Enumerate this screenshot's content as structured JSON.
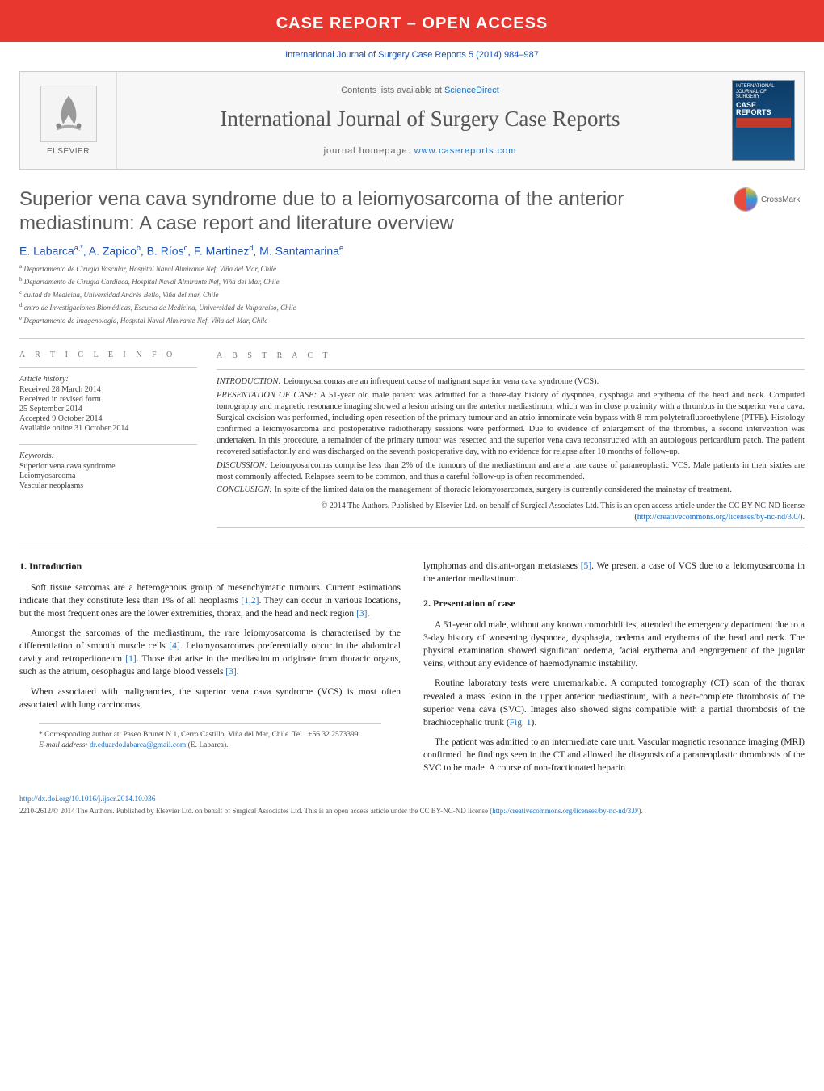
{
  "banner": {
    "text": "CASE REPORT – OPEN ACCESS"
  },
  "citation": "International Journal of Surgery Case Reports 5 (2014) 984–987",
  "header": {
    "elsevier_label": "ELSEVIER",
    "available": "Contents lists available at ",
    "available_link": "ScienceDirect",
    "journal_title": "International Journal of Surgery Case Reports",
    "homepage_label": "journal homepage: ",
    "homepage_url": "www.casereports.com",
    "cover": {
      "line1": "INTERNATIONAL JOURNAL OF SURGERY",
      "line2": "CASE REPORTS"
    }
  },
  "title": "Superior vena cava syndrome due to a leiomyosarcoma of the anterior mediastinum: A case report and literature overview",
  "crossmark_label": "CrossMark",
  "authors_html": "E. Labarca<sup>a,*</sup>, A. Zapico<sup>b</sup>, B. Ríos<sup>c</sup>, F. Martinez<sup>d</sup>, M. Santamarina<sup>e</sup>",
  "affiliations": [
    {
      "sup": "a",
      "text": "Departamento de Cirugía Vascular, Hospital Naval Almirante Nef, Viña del Mar, Chile"
    },
    {
      "sup": "b",
      "text": "Departamento de Cirugía Cardiaca, Hospital Naval Almirante Nef, Viña del Mar, Chile"
    },
    {
      "sup": "c",
      "text": "cultad de Medicina, Universidad Andrés Bello, Viña del mar, Chile"
    },
    {
      "sup": "d",
      "text": "entro de Investigaciones Biomédicas, Escuela de Medicina, Universidad de Valparaíso, Chile"
    },
    {
      "sup": "e",
      "text": "Departamento de Imagenología, Hospital Naval Almirante Nef, Viña del Mar, Chile"
    }
  ],
  "article_info": {
    "head": "A R T I C L E   I N F O",
    "history_label": "Article history:",
    "history": [
      "Received 28 March 2014",
      "Received in revised form",
      "25 September 2014",
      "Accepted 9 October 2014",
      "Available online 31 October 2014"
    ],
    "keywords_label": "Keywords:",
    "keywords": [
      "Superior vena cava syndrome",
      "Leiomyosarcoma",
      "Vascular neoplasms"
    ]
  },
  "abstract": {
    "head": "A B S T R A C T",
    "sections": [
      {
        "label": "INTRODUCTION:",
        "text": "Leiomyosarcomas are an infrequent cause of malignant superior vena cava syndrome (VCS)."
      },
      {
        "label": "PRESENTATION OF CASE:",
        "text": "A 51-year old male patient was admitted for a three-day history of dyspnoea, dysphagia and erythema of the head and neck. Computed tomography and magnetic resonance imaging showed a lesion arising on the anterior mediastinum, which was in close proximity with a thrombus in the superior vena cava. Surgical excision was performed, including open resection of the primary tumour and an atrio-innominate vein bypass with 8-mm polytetrafluoroethylene (PTFE). Histology confirmed a leiomyosarcoma and postoperative radiotherapy sessions were performed. Due to evidence of enlargement of the thrombus, a second intervention was undertaken. In this procedure, a remainder of the primary tumour was resected and the superior vena cava reconstructed with an autologous pericardium patch. The patient recovered satisfactorily and was discharged on the seventh postoperative day, with no evidence for relapse after 10 months of follow-up."
      },
      {
        "label": "DISCUSSION:",
        "text": "Leiomyosarcomas comprise less than 2% of the tumours of the mediastinum and are a rare cause of paraneoplastic VCS. Male patients in their sixties are most commonly affected. Relapses seem to be common, and thus a careful follow-up is often recommended."
      },
      {
        "label": "CONCLUSION:",
        "text": "In spite of the limited data on the management of thoracic leiomyosarcomas, surgery is currently considered the mainstay of treatment."
      }
    ],
    "copyright": "© 2014 The Authors. Published by Elsevier Ltd. on behalf of Surgical Associates Ltd. This is an open access article under the CC BY-NC-ND license (",
    "copyright_link": "http://creativecommons.org/licenses/by-nc-nd/3.0/",
    "copyright_tail": ")."
  },
  "body": {
    "left": {
      "head": "1.  Introduction",
      "paras": [
        "Soft tissue sarcomas are a heterogenous group of mesenchymatic tumours. Current estimations indicate that they constitute less than 1% of all neoplasms [1,2]. They can occur in various locations, but the most frequent ones are the lower extremities, thorax, and the head and neck region [3].",
        "Amongst the sarcomas of the mediastinum, the rare leiomyosarcoma is characterised by the differentiation of smooth muscle cells [4]. Leiomyosarcomas preferentially occur in the abdominal cavity and retroperitoneum [1]. Those that arise in the mediastinum originate from thoracic organs, such as the atrium, oesophagus and large blood vessels [3].",
        "When associated with malignancies, the superior vena cava syndrome (VCS) is most often associated with lung carcinomas,"
      ],
      "ref_positions": {
        "[1,2]": true,
        "[3]": true,
        "[4]": true,
        "[1]": true
      }
    },
    "right": {
      "lead": "lymphomas and distant-organ metastases [5]. We present a case of VCS due to a leiomyosarcoma in the anterior mediastinum.",
      "head": "2.  Presentation of case",
      "paras": [
        "A 51-year old male, without any known comorbidities, attended the emergency department due to a 3-day history of worsening dyspnoea, dysphagia, oedema and erythema of the head and neck. The physical examination showed significant oedema, facial erythema and engorgement of the jugular veins, without any evidence of haemodynamic instability.",
        "Routine laboratory tests were unremarkable. A computed tomography (CT) scan of the thorax revealed a mass lesion in the upper anterior mediastinum, with a near-complete thrombosis of the superior vena cava (SVC). Images also showed signs compatible with a partial thrombosis of the brachiocephalic trunk (Fig. 1).",
        "The patient was admitted to an intermediate care unit. Vascular magnetic resonance imaging (MRI) confirmed the findings seen in the CT and allowed the diagnosis of a paraneoplastic thrombosis of the SVC to be made. A course of non-fractionated heparin"
      ]
    }
  },
  "footnote": {
    "corresponding": "* Corresponding author at: Paseo Brunet N 1, Cerro Castillo, Viña del Mar, Chile. Tel.: +56 32 2573399.",
    "email_label": "E-mail address:",
    "email": "dr.eduardo.labarca@gmail.com",
    "email_attr": "(E. Labarca)."
  },
  "doi": "http://dx.doi.org/10.1016/j.ijscr.2014.10.036",
  "bottom_copy": "2210-2612/© 2014 The Authors. Published by Elsevier Ltd. on behalf of Surgical Associates Ltd. This is an open access article under the CC BY-NC-ND license (",
  "bottom_copy_link": "http://creativecommons.org/licenses/by-nc-nd/3.0/",
  "bottom_copy_tail": ").",
  "colors": {
    "banner_bg": "#e8372f",
    "link": "#1a6fc4",
    "citation": "#1a4fb3",
    "title_gray": "#5a5a5a",
    "rule": "#cccccc"
  }
}
